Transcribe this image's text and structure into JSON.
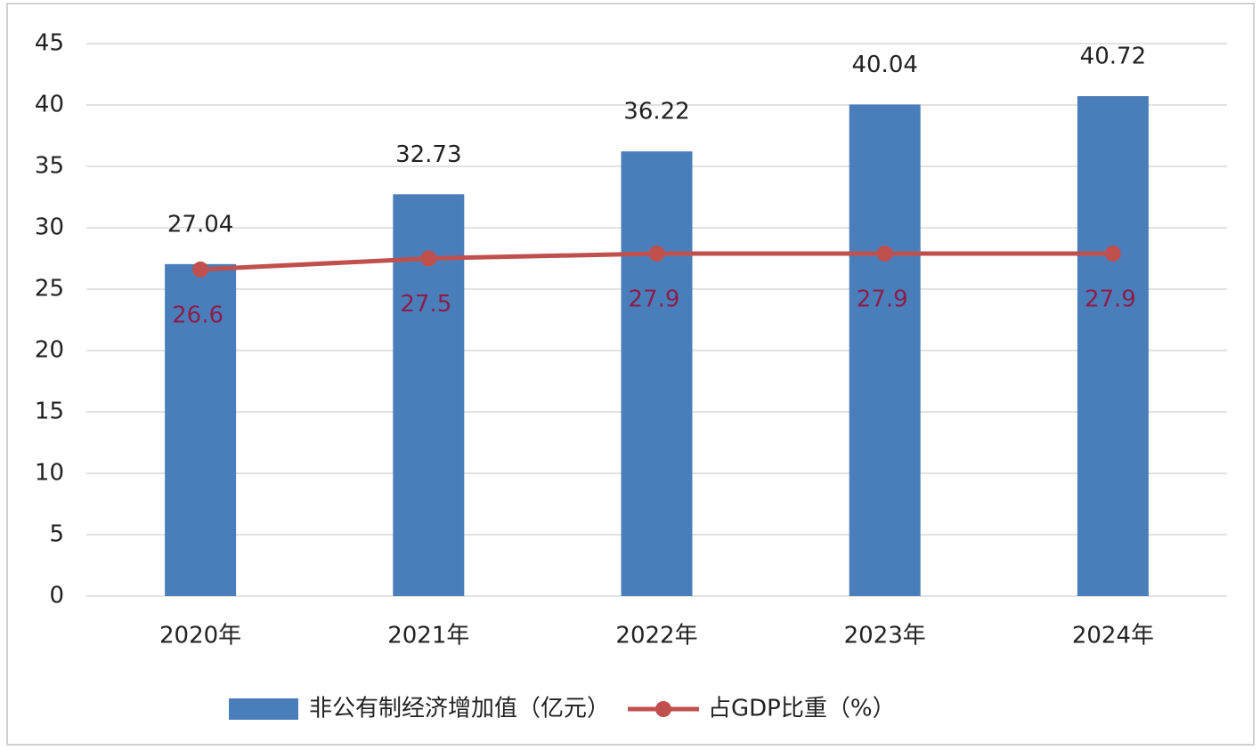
{
  "chart_data": {
    "type": "bar_line",
    "categories": [
      "2020年",
      "2021年",
      "2022年",
      "2023年",
      "2024年"
    ],
    "series": [
      {
        "name": "非公有制经济增加值（亿元）",
        "type": "bar",
        "color": "#4a7ebb",
        "values": [
          27.04,
          32.73,
          36.22,
          40.04,
          40.72
        ]
      },
      {
        "name": "占GDP比重（%）",
        "type": "line",
        "color": "#c0504d",
        "values": [
          26.6,
          27.5,
          27.9,
          27.9,
          27.9
        ]
      }
    ],
    "ylim": [
      0,
      45
    ],
    "yticks": [
      0,
      5,
      10,
      15,
      20,
      25,
      30,
      35,
      40,
      45
    ],
    "grid": true,
    "legend": "bottom"
  }
}
